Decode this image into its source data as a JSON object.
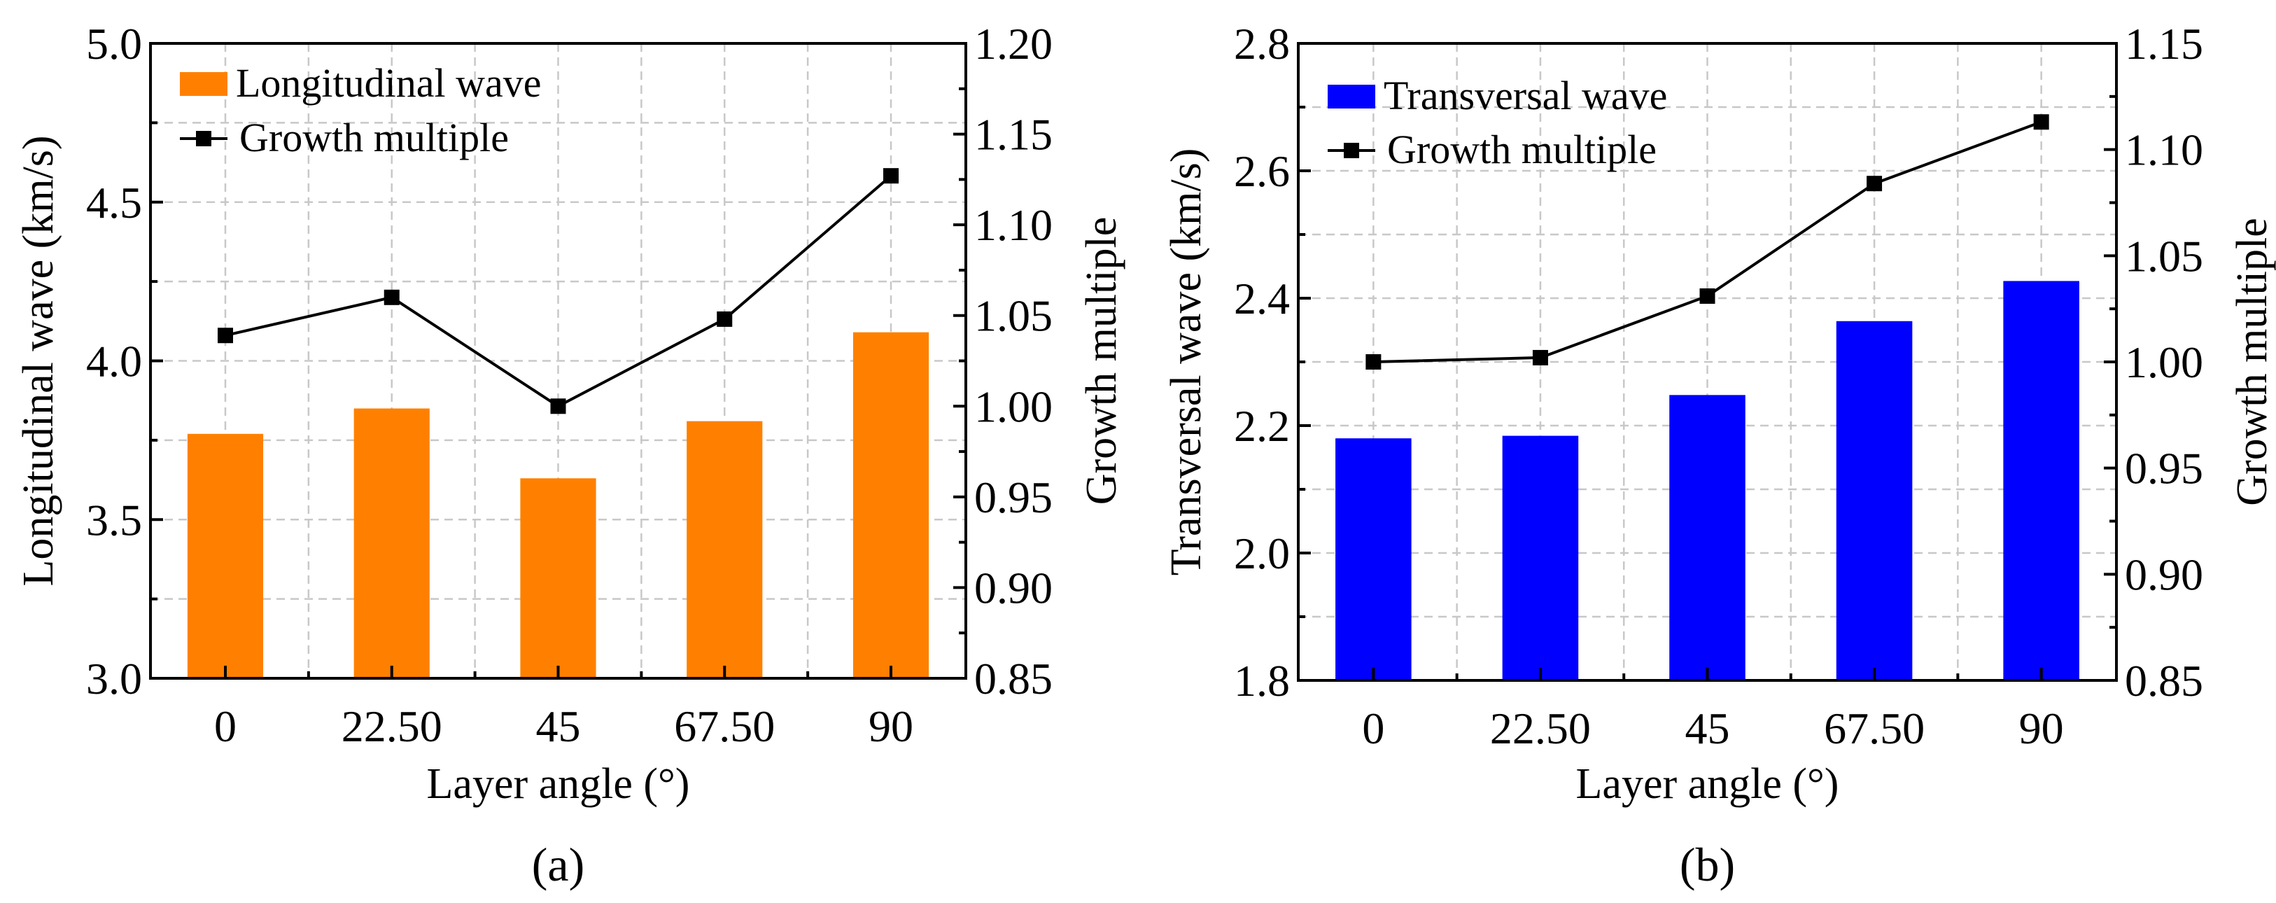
{
  "chart_data": [
    {
      "type": "bar",
      "panel_label": "(a)",
      "panel_letter": "a",
      "xlabel": "Layer angle (°)",
      "ylabel": "Longitudinal wave (km/s)",
      "y2label": "Growth multiple",
      "categories": [
        "0",
        "22.50",
        "45",
        "67.50",
        "90"
      ],
      "ylim": [
        3.0,
        5.0
      ],
      "yticks": [
        "3.0",
        "3.5",
        "4.0",
        "4.5",
        "5.0"
      ],
      "y2lim": [
        0.85,
        1.2
      ],
      "y2ticks": [
        "0.85",
        "0.90",
        "0.95",
        "1.00",
        "1.05",
        "1.10",
        "1.15",
        "1.20"
      ],
      "grid": true,
      "legend_placement": "top-left",
      "series": [
        {
          "name": "Longitudinal wave",
          "kind": "bar",
          "axis": "left",
          "color": "#FF8000",
          "values": [
            3.77,
            3.85,
            3.63,
            3.81,
            4.09
          ]
        },
        {
          "name": "Growth multiple",
          "kind": "line",
          "axis": "right",
          "color": "#000000",
          "marker": "square",
          "values": [
            1.039,
            1.06,
            1.0,
            1.048,
            1.127
          ]
        }
      ]
    },
    {
      "type": "bar",
      "panel_label": "(b)",
      "panel_letter": "b",
      "xlabel": "Layer angle (°)",
      "ylabel": "Transversal wave (km/s)",
      "y2label": "Growth multiple",
      "categories": [
        "0",
        "22.50",
        "45",
        "67.50",
        "90"
      ],
      "ylim": [
        1.8,
        2.8
      ],
      "yticks": [
        "1.8",
        "2.0",
        "2.2",
        "2.4",
        "2.6",
        "2.8"
      ],
      "y2lim": [
        0.85,
        1.15
      ],
      "y2ticks": [
        "0.85",
        "0.90",
        "0.95",
        "1.00",
        "1.05",
        "1.10",
        "1.15"
      ],
      "grid": true,
      "legend_placement": "top-left",
      "series": [
        {
          "name": "Transversal wave",
          "kind": "bar",
          "axis": "left",
          "color": "#0000FF",
          "values": [
            2.18,
            2.184,
            2.248,
            2.364,
            2.427
          ]
        },
        {
          "name": "Growth multiple",
          "kind": "line",
          "axis": "right",
          "color": "#000000",
          "marker": "square",
          "values": [
            1.0,
            1.002,
            1.031,
            1.084,
            1.113
          ]
        }
      ]
    }
  ]
}
